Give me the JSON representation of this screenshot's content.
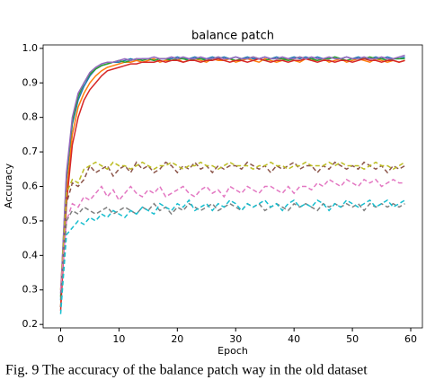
{
  "chart_data": {
    "type": "line",
    "title": "balance patch",
    "x_label": "Epoch",
    "y_label": "Accuracy",
    "x": [
      0,
      1,
      2,
      3,
      4,
      5,
      6,
      7,
      8,
      9,
      10,
      11,
      12,
      13,
      14,
      15,
      16,
      17,
      18,
      19,
      20,
      21,
      22,
      23,
      24,
      25,
      26,
      27,
      28,
      29,
      30,
      31,
      32,
      33,
      34,
      35,
      36,
      37,
      38,
      39,
      40,
      41,
      42,
      43,
      44,
      45,
      46,
      47,
      48,
      49,
      50,
      51,
      52,
      53,
      54,
      55,
      56,
      57,
      58,
      59
    ],
    "xlim": [
      -3,
      62
    ],
    "xticks": [
      0,
      10,
      20,
      30,
      40,
      50,
      60
    ],
    "ylim": [
      0.19,
      1.01
    ],
    "yticks": [
      0.2,
      0.3,
      0.4,
      0.5,
      0.6,
      0.7,
      0.8,
      0.9,
      {
        "value": 1,
        "label": "1.0"
      }
    ],
    "series": [
      {
        "color": "#1f77b4",
        "linestyle": "solid",
        "values": [
          0.27,
          0.62,
          0.78,
          0.85,
          0.89,
          0.92,
          0.94,
          0.95,
          0.955,
          0.96,
          0.96,
          0.965,
          0.97,
          0.965,
          0.97,
          0.97,
          0.965,
          0.97,
          0.97,
          0.97,
          0.975,
          0.97,
          0.97,
          0.975,
          0.97,
          0.97,
          0.975,
          0.97,
          0.975,
          0.97,
          0.975,
          0.97,
          0.975,
          0.97,
          0.97,
          0.975,
          0.97,
          0.975,
          0.97,
          0.97,
          0.975,
          0.97,
          0.975,
          0.97,
          0.975,
          0.97,
          0.97,
          0.975,
          0.97,
          0.975,
          0.97,
          0.975,
          0.97,
          0.97,
          0.975,
          0.97,
          0.975,
          0.97,
          0.97,
          0.975
        ]
      },
      {
        "color": "#ff7f0e",
        "linestyle": "solid",
        "values": [
          0.25,
          0.58,
          0.75,
          0.83,
          0.87,
          0.9,
          0.92,
          0.935,
          0.945,
          0.95,
          0.955,
          0.96,
          0.96,
          0.965,
          0.96,
          0.965,
          0.97,
          0.96,
          0.965,
          0.965,
          0.97,
          0.96,
          0.965,
          0.97,
          0.965,
          0.96,
          0.97,
          0.965,
          0.965,
          0.97,
          0.96,
          0.965,
          0.97,
          0.965,
          0.96,
          0.97,
          0.965,
          0.96,
          0.965,
          0.97,
          0.965,
          0.96,
          0.97,
          0.965,
          0.965,
          0.97,
          0.96,
          0.965,
          0.97,
          0.96,
          0.965,
          0.97,
          0.965,
          0.96,
          0.97,
          0.965,
          0.96,
          0.965,
          0.96,
          0.965
        ]
      },
      {
        "color": "#2ca02c",
        "linestyle": "solid",
        "values": [
          0.28,
          0.63,
          0.79,
          0.86,
          0.9,
          0.925,
          0.94,
          0.95,
          0.955,
          0.96,
          0.965,
          0.96,
          0.965,
          0.97,
          0.965,
          0.97,
          0.965,
          0.97,
          0.97,
          0.965,
          0.97,
          0.97,
          0.965,
          0.97,
          0.97,
          0.965,
          0.97,
          0.975,
          0.97,
          0.97,
          0.965,
          0.97,
          0.97,
          0.975,
          0.97,
          0.965,
          0.97,
          0.97,
          0.97,
          0.965,
          0.97,
          0.975,
          0.97,
          0.97,
          0.965,
          0.97,
          0.97,
          0.975,
          0.97,
          0.965,
          0.97,
          0.97,
          0.97,
          0.975,
          0.97,
          0.97,
          0.965,
          0.97,
          0.97,
          0.97
        ]
      },
      {
        "color": "#d62728",
        "linestyle": "solid",
        "values": [
          0.24,
          0.55,
          0.72,
          0.8,
          0.85,
          0.88,
          0.9,
          0.92,
          0.935,
          0.94,
          0.945,
          0.95,
          0.955,
          0.955,
          0.96,
          0.96,
          0.96,
          0.965,
          0.96,
          0.965,
          0.965,
          0.96,
          0.965,
          0.965,
          0.96,
          0.965,
          0.965,
          0.97,
          0.965,
          0.96,
          0.965,
          0.965,
          0.96,
          0.965,
          0.97,
          0.965,
          0.96,
          0.965,
          0.965,
          0.96,
          0.965,
          0.965,
          0.97,
          0.965,
          0.96,
          0.965,
          0.965,
          0.96,
          0.965,
          0.965,
          0.96,
          0.965,
          0.97,
          0.965,
          0.965,
          0.96,
          0.965,
          0.965,
          0.96,
          0.965
        ]
      },
      {
        "color": "#9467bd",
        "linestyle": "solid",
        "values": [
          0.29,
          0.64,
          0.8,
          0.87,
          0.9,
          0.93,
          0.945,
          0.955,
          0.96,
          0.96,
          0.965,
          0.97,
          0.965,
          0.97,
          0.97,
          0.97,
          0.975,
          0.97,
          0.97,
          0.975,
          0.97,
          0.975,
          0.97,
          0.97,
          0.975,
          0.97,
          0.97,
          0.975,
          0.97,
          0.97,
          0.975,
          0.97,
          0.97,
          0.975,
          0.97,
          0.975,
          0.97,
          0.97,
          0.975,
          0.97,
          0.97,
          0.975,
          0.97,
          0.975,
          0.97,
          0.97,
          0.975,
          0.97,
          0.97,
          0.975,
          0.97,
          0.97,
          0.975,
          0.97,
          0.97,
          0.975,
          0.97,
          0.97,
          0.975,
          0.98
        ]
      },
      {
        "color": "#8c564b",
        "linestyle": "dashed",
        "values": [
          0.25,
          0.55,
          0.61,
          0.6,
          0.62,
          0.66,
          0.64,
          0.65,
          0.66,
          0.63,
          0.65,
          0.66,
          0.64,
          0.67,
          0.65,
          0.66,
          0.64,
          0.65,
          0.67,
          0.66,
          0.64,
          0.66,
          0.65,
          0.67,
          0.65,
          0.66,
          0.64,
          0.66,
          0.65,
          0.66,
          0.66,
          0.65,
          0.67,
          0.66,
          0.65,
          0.66,
          0.64,
          0.66,
          0.65,
          0.66,
          0.67,
          0.65,
          0.66,
          0.66,
          0.64,
          0.66,
          0.65,
          0.67,
          0.66,
          0.65,
          0.66,
          0.65,
          0.67,
          0.66,
          0.65,
          0.66,
          0.64,
          0.66,
          0.65,
          0.66
        ]
      },
      {
        "color": "#bcbd22",
        "linestyle": "dashed",
        "values": [
          0.3,
          0.58,
          0.62,
          0.61,
          0.65,
          0.66,
          0.67,
          0.66,
          0.65,
          0.67,
          0.66,
          0.66,
          0.65,
          0.66,
          0.67,
          0.66,
          0.65,
          0.66,
          0.66,
          0.67,
          0.66,
          0.65,
          0.66,
          0.66,
          0.67,
          0.66,
          0.66,
          0.65,
          0.66,
          0.67,
          0.66,
          0.66,
          0.66,
          0.65,
          0.66,
          0.66,
          0.67,
          0.66,
          0.66,
          0.65,
          0.66,
          0.66,
          0.67,
          0.66,
          0.66,
          0.66,
          0.67,
          0.66,
          0.67,
          0.66,
          0.66,
          0.66,
          0.65,
          0.66,
          0.67,
          0.66,
          0.66,
          0.65,
          0.66,
          0.67
        ]
      },
      {
        "color": "#e377c2",
        "linestyle": "dashed",
        "values": [
          0.3,
          0.5,
          0.55,
          0.54,
          0.57,
          0.56,
          0.58,
          0.6,
          0.57,
          0.59,
          0.56,
          0.58,
          0.6,
          0.58,
          0.57,
          0.59,
          0.58,
          0.6,
          0.57,
          0.58,
          0.59,
          0.6,
          0.58,
          0.57,
          0.59,
          0.6,
          0.58,
          0.59,
          0.57,
          0.6,
          0.59,
          0.58,
          0.6,
          0.59,
          0.58,
          0.6,
          0.6,
          0.59,
          0.58,
          0.6,
          0.58,
          0.6,
          0.6,
          0.59,
          0.61,
          0.6,
          0.62,
          0.61,
          0.6,
          0.62,
          0.61,
          0.6,
          0.62,
          0.61,
          0.62,
          0.6,
          0.61,
          0.62,
          0.61,
          0.61
        ]
      },
      {
        "color": "#7f7f7f",
        "linestyle": "dashed",
        "values": [
          0.25,
          0.5,
          0.53,
          0.52,
          0.54,
          0.53,
          0.52,
          0.53,
          0.54,
          0.52,
          0.53,
          0.54,
          0.53,
          0.52,
          0.54,
          0.53,
          0.55,
          0.53,
          0.54,
          0.52,
          0.54,
          0.53,
          0.55,
          0.54,
          0.53,
          0.54,
          0.55,
          0.53,
          0.54,
          0.55,
          0.54,
          0.53,
          0.55,
          0.54,
          0.55,
          0.53,
          0.54,
          0.55,
          0.54,
          0.53,
          0.55,
          0.54,
          0.55,
          0.54,
          0.53,
          0.55,
          0.54,
          0.55,
          0.54,
          0.55,
          0.54,
          0.55,
          0.53,
          0.55,
          0.54,
          0.55,
          0.54,
          0.55,
          0.54,
          0.55
        ]
      },
      {
        "color": "#17becf",
        "linestyle": "dashed",
        "values": [
          0.23,
          0.46,
          0.48,
          0.5,
          0.49,
          0.51,
          0.5,
          0.52,
          0.51,
          0.53,
          0.52,
          0.51,
          0.53,
          0.52,
          0.54,
          0.53,
          0.52,
          0.55,
          0.54,
          0.53,
          0.55,
          0.54,
          0.56,
          0.53,
          0.54,
          0.55,
          0.53,
          0.55,
          0.54,
          0.56,
          0.55,
          0.53,
          0.55,
          0.54,
          0.55,
          0.56,
          0.54,
          0.55,
          0.53,
          0.55,
          0.56,
          0.54,
          0.55,
          0.54,
          0.56,
          0.55,
          0.53,
          0.55,
          0.54,
          0.56,
          0.55,
          0.54,
          0.55,
          0.56,
          0.54,
          0.55,
          0.56,
          0.54,
          0.55,
          0.56
        ]
      }
    ]
  },
  "caption": "Fig. 9 The accuracy of the balance patch way in the old dataset"
}
